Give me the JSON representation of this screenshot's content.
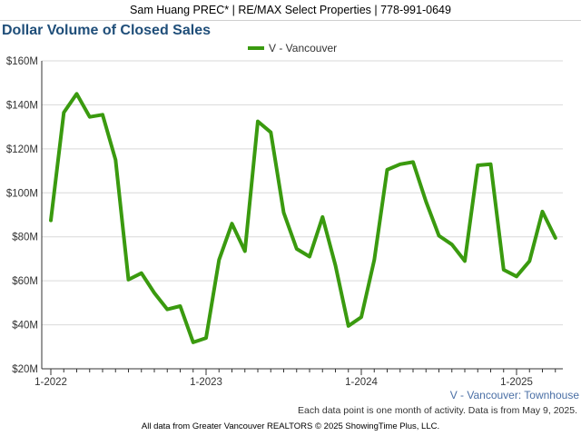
{
  "header": {
    "text": "Sam Huang PREC* | RE/MAX Select Properties | 778-991-0649"
  },
  "footer": {
    "note": "Each data point is one month of activity. Data is from May 9, 2025.",
    "copyright": "All data from Greater Vancouver REALTORS © 2025 ShowingTime Plus, LLC."
  },
  "chart_data": {
    "type": "line",
    "title": "Dollar Volume of Closed Sales",
    "subtitle": "V - Vancouver: Townhouse",
    "legend_position": "top-center",
    "grid": true,
    "ylim": [
      20,
      160
    ],
    "y_ticks": [
      20,
      40,
      60,
      80,
      100,
      120,
      140,
      160
    ],
    "y_tick_labels": [
      "$20M",
      "$40M",
      "$60M",
      "$80M",
      "$100M",
      "$120M",
      "$140M",
      "$160M"
    ],
    "x_tick_labels": [
      "1-2022",
      "1-2023",
      "1-2024",
      "1-2025"
    ],
    "x": [
      "2022-01",
      "2022-02",
      "2022-03",
      "2022-04",
      "2022-05",
      "2022-06",
      "2022-07",
      "2022-08",
      "2022-09",
      "2022-10",
      "2022-11",
      "2022-12",
      "2023-01",
      "2023-02",
      "2023-03",
      "2023-04",
      "2023-05",
      "2023-06",
      "2023-07",
      "2023-08",
      "2023-09",
      "2023-10",
      "2023-11",
      "2023-12",
      "2024-01",
      "2024-02",
      "2024-03",
      "2024-04",
      "2024-05",
      "2024-06",
      "2024-07",
      "2024-08",
      "2024-09",
      "2024-10",
      "2024-11",
      "2024-12",
      "2025-01",
      "2025-02",
      "2025-03",
      "2025-04"
    ],
    "series": [
      {
        "name": "V - Vancouver",
        "color": "#3a9a0f",
        "values": [
          87.5,
          136.5,
          145,
          134.5,
          135.5,
          115,
          60.5,
          63.5,
          54.5,
          47,
          48.5,
          32,
          34,
          69.5,
          86,
          73.5,
          132.5,
          127.5,
          91,
          74.5,
          71,
          89,
          67,
          39.5,
          43.5,
          69.5,
          110.5,
          113,
          114,
          96,
          80.5,
          76.5,
          69,
          112.5,
          113,
          65,
          62,
          69,
          91.5,
          79.5
        ]
      }
    ]
  }
}
